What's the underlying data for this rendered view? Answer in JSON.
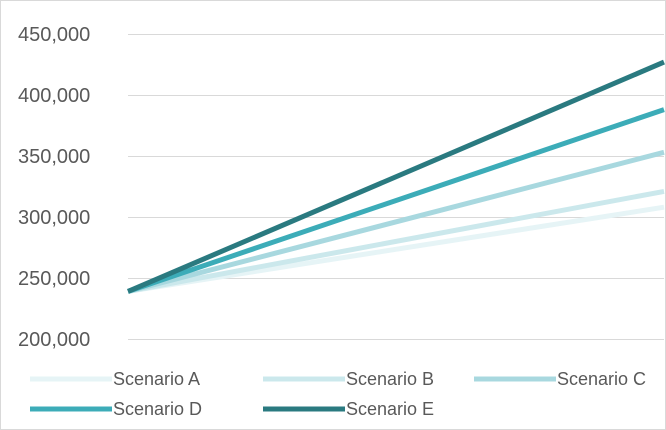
{
  "chart_data": {
    "type": "line",
    "title": "",
    "xlabel": "",
    "ylabel": "",
    "ylim": [
      200000,
      450000
    ],
    "yticks": [
      {
        "value": 200000,
        "label": "200,000"
      },
      {
        "value": 250000,
        "label": "250,000"
      },
      {
        "value": 300000,
        "label": "300,000"
      },
      {
        "value": 350000,
        "label": "350,000"
      },
      {
        "value": 400000,
        "label": "400,000"
      },
      {
        "value": 450000,
        "label": "450,000"
      }
    ],
    "x": [
      0,
      1
    ],
    "grid": true,
    "legend_position": "bottom",
    "series": [
      {
        "name": "Scenario A",
        "color": "#e6f4f6",
        "values": [
          239000,
          308000
        ]
      },
      {
        "name": "Scenario B",
        "color": "#cbe8ec",
        "values": [
          239000,
          321000
        ]
      },
      {
        "name": "Scenario C",
        "color": "#a8d8df",
        "values": [
          239000,
          353000
        ]
      },
      {
        "name": "Scenario D",
        "color": "#3cacb8",
        "values": [
          239000,
          388000
        ]
      },
      {
        "name": "Scenario E",
        "color": "#2a7a80",
        "values": [
          239000,
          427000
        ]
      }
    ]
  }
}
